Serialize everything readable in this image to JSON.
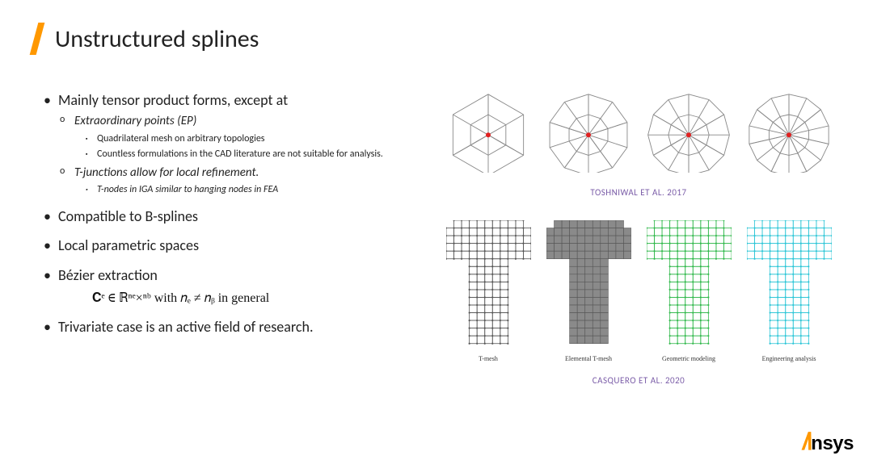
{
  "title": "Unstructured splines",
  "bullets": {
    "b1": "Mainly tensor product forms, except at",
    "b1a": "Extraordinary points (EP)",
    "b1a_i": "Quadrilateral mesh on arbitrary topologies",
    "b1a_ii": "Countless formulations in the CAD literature are not suitable for analysis.",
    "b1b": "T-junctions allow for local refinement.",
    "b1b_i": "T-nodes in IGA similar to hanging nodes in FEA",
    "b2": "Compatible to B-splines",
    "b3": "Local parametric spaces",
    "b4": "Bézier extraction",
    "formula": "𝐂ᵉ ∈ ℝⁿᵉ×ⁿᵇ with 𝑛ₑ ≠ 𝑛ᵦ in general",
    "b5": "Trivariate case is an active field of research."
  },
  "citations": {
    "top": "TOSHNIWAL ET AL. 2017",
    "bottom": "CASQUERO ET AL. 2020"
  },
  "top_figs": [
    {
      "sectors": 3
    },
    {
      "sectors": 5
    },
    {
      "sectors": 6
    },
    {
      "sectors": 7
    }
  ],
  "bottom_figs": {
    "items": [
      {
        "caption": "T-mesh",
        "stroke": "#555555",
        "fill": "none",
        "dot": "#555555"
      },
      {
        "caption": "Elemental T-mesh",
        "stroke": "#555555",
        "fill": "#8a8a8a",
        "dot": "#555555"
      },
      {
        "caption": "Geometric modeling",
        "stroke": "#2fb84a",
        "fill": "none",
        "dot": "#2fb84a"
      },
      {
        "caption": "Engineering analysis",
        "stroke": "#2ac5d6",
        "fill": "none",
        "dot": "#2ac5d6"
      }
    ]
  },
  "colors": {
    "accent": "#ff9800",
    "ep_dot": "#e22020",
    "citation": "#7b5da8"
  },
  "logo": {
    "brand": "nsys"
  }
}
